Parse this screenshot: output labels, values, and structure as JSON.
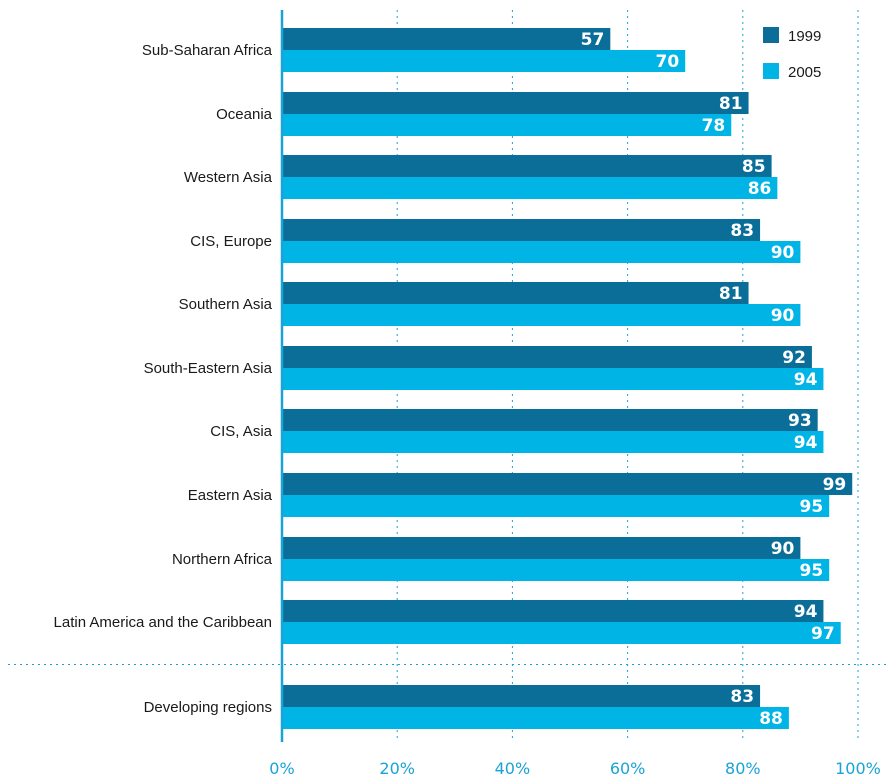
{
  "chart_data": {
    "type": "bar",
    "orientation": "horizontal",
    "categories": [
      "Sub-Saharan Africa",
      "Oceania",
      "Western Asia",
      "CIS, Europe",
      "Southern Asia",
      "South-Eastern Asia",
      "CIS, Asia",
      "Eastern Asia",
      "Northern Africa",
      "Latin America and the Caribbean",
      "Developing regions"
    ],
    "series": [
      {
        "name": "1999",
        "color": "#0b6e99",
        "values": [
          57,
          81,
          85,
          83,
          81,
          92,
          93,
          99,
          90,
          94,
          83
        ]
      },
      {
        "name": "2005",
        "color": "#00b4e6",
        "values": [
          70,
          78,
          86,
          90,
          90,
          94,
          94,
          95,
          95,
          97,
          88
        ]
      }
    ],
    "xlim": [
      0,
      100
    ],
    "x_ticks": [
      "0%",
      "20%",
      "40%",
      "60%",
      "80%",
      "100%"
    ],
    "grid": "vertical dotted",
    "legend_position": "top-right",
    "separator_before": "Developing regions"
  }
}
